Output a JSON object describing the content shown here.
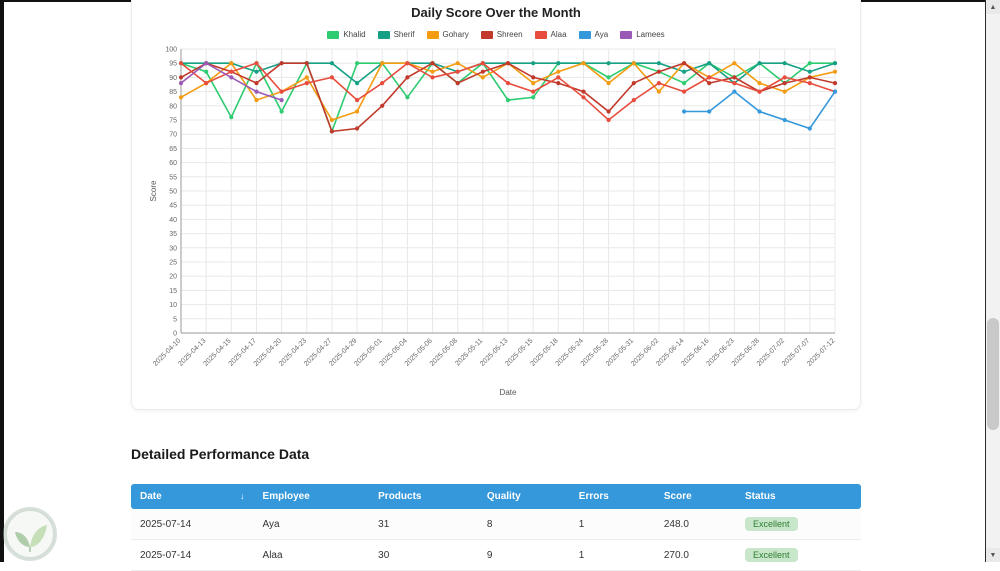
{
  "chart_data": {
    "type": "line",
    "title": "Daily Score Over the Month",
    "xlabel": "Date",
    "ylabel": "Score",
    "ylim": [
      0,
      100
    ],
    "ytick_step": 5,
    "grid": true,
    "legend_position": "top",
    "categories": [
      "2025-04-10",
      "2025-04-13",
      "2025-04-15",
      "2025-04-17",
      "2025-04-20",
      "2025-04-23",
      "2025-04-27",
      "2025-04-29",
      "2025-05-01",
      "2025-05-04",
      "2025-05-06",
      "2025-05-08",
      "2025-05-11",
      "2025-05-13",
      "2025-05-15",
      "2025-05-18",
      "2025-05-24",
      "2025-05-28",
      "2025-05-31",
      "2025-06-02",
      "2025-06-14",
      "2025-06-16",
      "2025-06-23",
      "2025-06-28",
      "2025-07-02",
      "2025-07-07",
      "2025-07-12"
    ],
    "series": [
      {
        "name": "Khalid",
        "color": "#2ecc71",
        "values": [
          95,
          92,
          76,
          95,
          78,
          95,
          71,
          95,
          95,
          83,
          95,
          88,
          95,
          82,
          83,
          95,
          95,
          90,
          95,
          92,
          88,
          95,
          90,
          95,
          88,
          95,
          95
        ]
      },
      {
        "name": "Sherif",
        "color": "#16a085",
        "values": [
          95,
          95,
          95,
          92,
          95,
          95,
          95,
          88,
          95,
          95,
          95,
          92,
          95,
          95,
          95,
          95,
          95,
          95,
          95,
          95,
          92,
          95,
          88,
          95,
          95,
          92,
          95
        ]
      },
      {
        "name": "Gohary",
        "color": "#f39c12",
        "values": [
          83,
          88,
          95,
          82,
          85,
          90,
          75,
          78,
          95,
          95,
          92,
          95,
          90,
          95,
          88,
          92,
          95,
          88,
          95,
          85,
          95,
          90,
          95,
          88,
          85,
          90,
          92
        ]
      },
      {
        "name": "Shreen",
        "color": "#c0392b",
        "values": [
          90,
          95,
          92,
          88,
          95,
          95,
          71,
          72,
          80,
          90,
          95,
          88,
          92,
          95,
          90,
          88,
          85,
          78,
          88,
          92,
          95,
          88,
          90,
          85,
          88,
          90,
          88
        ]
      },
      {
        "name": "Alaa",
        "color": "#e74c3c",
        "values": [
          95,
          88,
          92,
          95,
          85,
          88,
          90,
          82,
          88,
          95,
          90,
          92,
          95,
          88,
          85,
          90,
          83,
          75,
          82,
          88,
          85,
          90,
          88,
          85,
          90,
          88,
          85
        ]
      },
      {
        "name": "Aya",
        "color": "#3498db",
        "values": [
          null,
          null,
          null,
          null,
          null,
          null,
          null,
          null,
          null,
          null,
          null,
          null,
          null,
          null,
          null,
          null,
          null,
          null,
          null,
          null,
          78,
          78,
          85,
          78,
          75,
          72,
          85
        ]
      },
      {
        "name": "Lamees",
        "color": "#9b59b6",
        "values": [
          88,
          95,
          90,
          85,
          82,
          null,
          null,
          null,
          null,
          null,
          null,
          null,
          null,
          null,
          null,
          null,
          null,
          null,
          null,
          null,
          null,
          null,
          null,
          null,
          null,
          null,
          null
        ]
      }
    ]
  },
  "section_heading": "Detailed Performance Data",
  "table": {
    "headers": [
      "Date",
      "Employee",
      "Products",
      "Quality",
      "Errors",
      "Score",
      "Status"
    ],
    "sort_icon": "↓",
    "rows": [
      {
        "date": "2025-07-14",
        "employee": "Aya",
        "products": "31",
        "quality": "8",
        "errors": "1",
        "score": "248.0",
        "status": "Excellent"
      },
      {
        "date": "2025-07-14",
        "employee": "Alaa",
        "products": "30",
        "quality": "9",
        "errors": "1",
        "score": "270.0",
        "status": "Excellent"
      }
    ]
  },
  "scrollbar": {
    "up_arrow": "▲",
    "down_arrow": "▼"
  },
  "colors": {
    "table_header_bg": "#3498db",
    "badge_bg": "#c8e6c9",
    "badge_text": "#2e7d32",
    "grid_line": "#e8e8e8"
  }
}
